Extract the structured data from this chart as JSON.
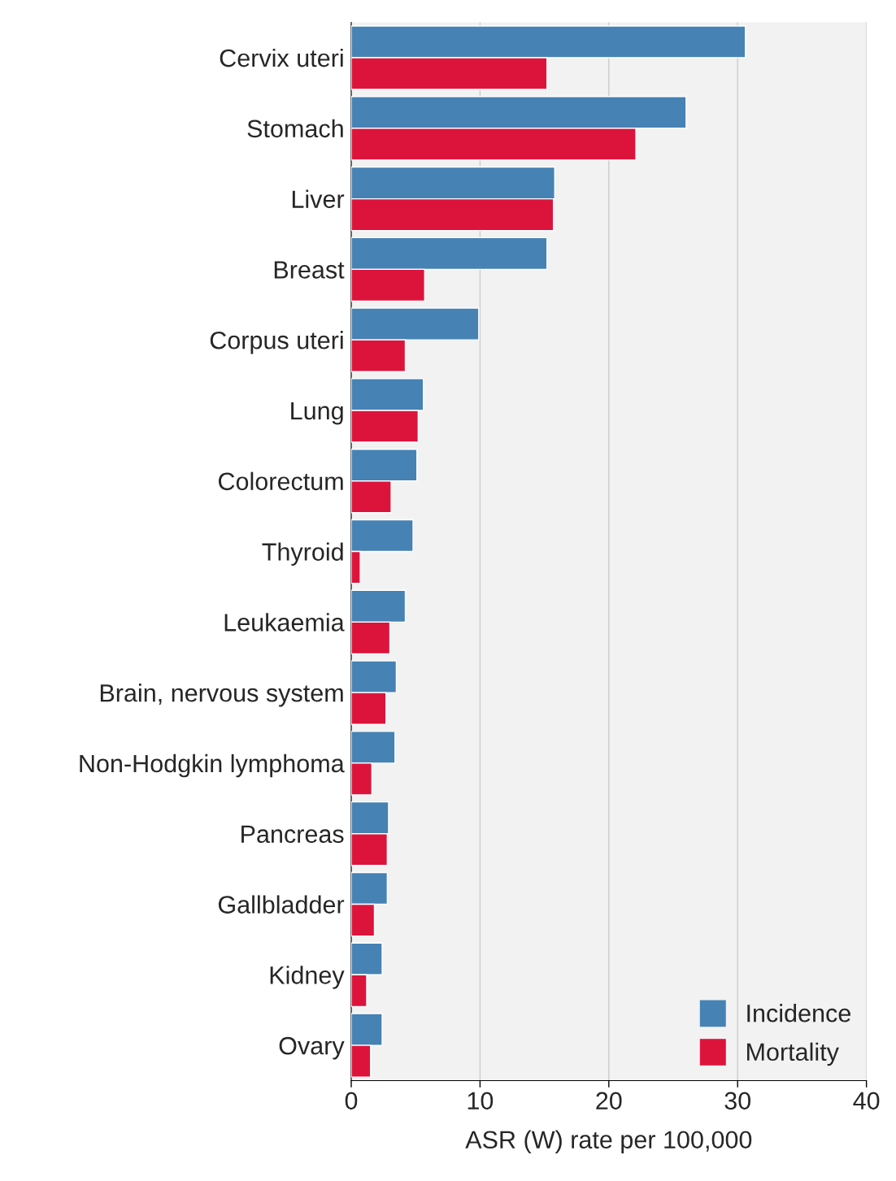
{
  "chart_data": {
    "type": "bar",
    "orientation": "horizontal",
    "xlabel": "ASR (W) rate per 100,000",
    "categories": [
      "Cervix uteri",
      "Stomach",
      "Liver",
      "Breast",
      "Corpus uteri",
      "Lung",
      "Colorectum",
      "Thyroid",
      "Leukaemia",
      "Brain, nervous system",
      "Non-Hodgkin lymphoma",
      "Pancreas",
      "Gallbladder",
      "Kidney",
      "Ovary"
    ],
    "series": [
      {
        "name": "Incidence",
        "color": "#4682b4",
        "values": [
          30.6,
          26.0,
          15.8,
          15.2,
          9.9,
          5.6,
          5.1,
          4.8,
          4.2,
          3.5,
          3.4,
          2.9,
          2.8,
          2.4,
          2.4
        ]
      },
      {
        "name": "Mortality",
        "color": "#dc143c",
        "values": [
          15.2,
          22.1,
          15.7,
          5.7,
          4.2,
          5.2,
          3.1,
          0.7,
          3.0,
          2.7,
          1.6,
          2.8,
          1.8,
          1.2,
          1.5
        ]
      }
    ],
    "xlim": [
      0,
      40
    ],
    "xticks": [
      0,
      10,
      20,
      30,
      40
    ],
    "grid": "x",
    "legend": "bottom right"
  }
}
